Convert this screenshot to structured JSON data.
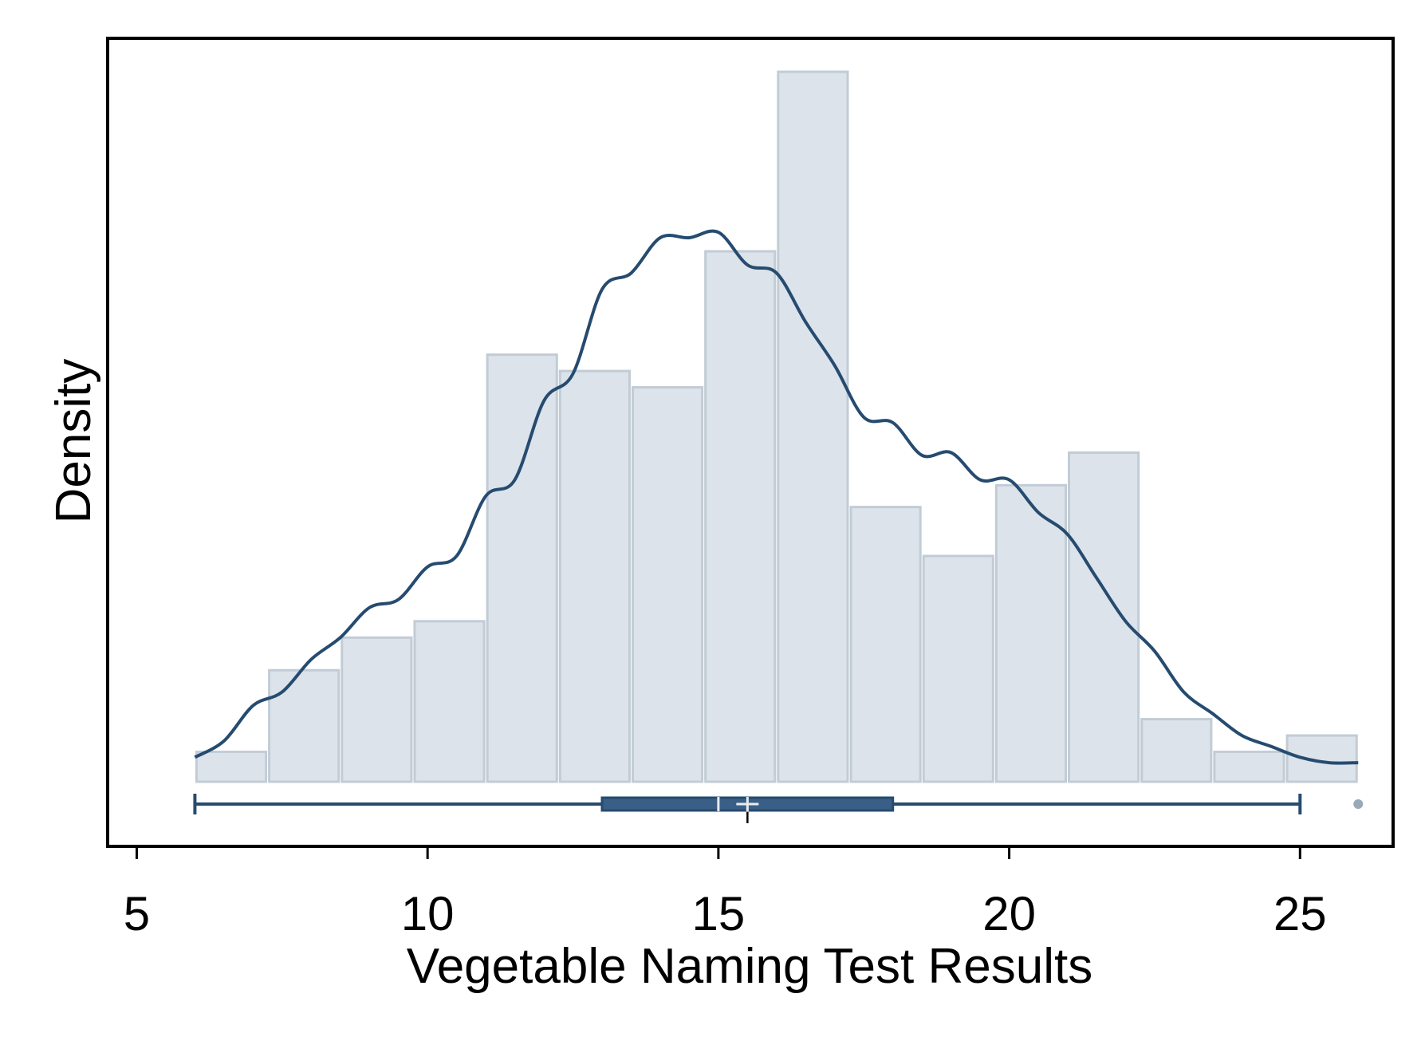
{
  "chart_data": {
    "type": "histogram",
    "title": "",
    "xlabel": "Vegetable Naming Test Results",
    "ylabel": "Density",
    "xlim": [
      4.5,
      26.6
    ],
    "x_ticks": [
      5,
      10,
      15,
      20,
      25
    ],
    "x_tick_labels": [
      "5",
      "10",
      "15",
      "20",
      "25"
    ],
    "y_tick_labels": [],
    "grid": false,
    "legend": "none",
    "colors": {
      "bar_fill": "#dce3ea",
      "bar_stroke": "#c2ccd6",
      "curve": "#264b70",
      "box": "#3a5f86",
      "frame": "#000000"
    },
    "histogram": {
      "bin_edges": [
        6.0,
        7.25,
        8.5,
        9.75,
        11.0,
        12.25,
        13.5,
        14.75,
        16.0,
        17.25,
        18.5,
        19.75,
        21.0,
        22.25,
        23.5,
        24.75,
        26.0
      ],
      "density": [
        0.0055,
        0.0205,
        0.0265,
        0.0295,
        0.0785,
        0.0755,
        0.0725,
        0.0975,
        0.1305,
        0.0505,
        0.0415,
        0.0545,
        0.0605,
        0.0115,
        0.0055,
        0.0085
      ]
    },
    "kde": {
      "x": [
        6.0,
        6.5,
        7.0,
        7.5,
        8.0,
        8.5,
        9.0,
        9.5,
        10.0,
        10.5,
        11.0,
        11.5,
        12.0,
        12.5,
        13.0,
        13.5,
        14.0,
        14.5,
        15.0,
        15.5,
        16.0,
        16.5,
        17.0,
        17.5,
        18.0,
        18.5,
        19.0,
        19.5,
        20.0,
        20.5,
        21.0,
        21.5,
        22.0,
        22.5,
        23.0,
        23.5,
        24.0,
        24.5,
        25.0,
        25.5,
        26.0
      ],
      "y": [
        0.0045,
        0.0075,
        0.014,
        0.0165,
        0.0225,
        0.0265,
        0.032,
        0.0335,
        0.0395,
        0.0415,
        0.0525,
        0.0555,
        0.07,
        0.075,
        0.0905,
        0.0935,
        0.1,
        0.1,
        0.101,
        0.095,
        0.0935,
        0.0845,
        0.0765,
        0.067,
        0.066,
        0.06,
        0.0605,
        0.0555,
        0.0555,
        0.0495,
        0.0455,
        0.0375,
        0.0295,
        0.024,
        0.0165,
        0.0125,
        0.0085,
        0.0065,
        0.0045,
        0.0035,
        0.0035
      ]
    },
    "boxplot": {
      "whisker_low": 6,
      "q1": 13,
      "median": 15,
      "mean": 15.5,
      "q3": 18,
      "whisker_high": 25,
      "outliers": [
        26
      ]
    }
  }
}
